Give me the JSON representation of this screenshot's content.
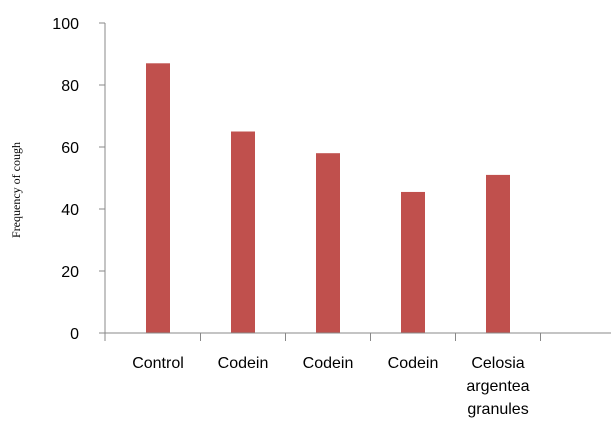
{
  "chart_data": {
    "type": "bar",
    "title": "",
    "xlabel": "",
    "ylabel": "Frequency of cough",
    "ylim": [
      0,
      100
    ],
    "yticks": [
      0,
      20,
      40,
      60,
      80,
      100
    ],
    "grid": false,
    "legend": "none",
    "bar_color": "#c0504d",
    "axis_color": "#888888",
    "categories": [
      [
        "Control"
      ],
      [
        "Codein"
      ],
      [
        "Codein"
      ],
      [
        "Codein"
      ],
      [
        "Celosia",
        "argentea",
        "granules"
      ]
    ],
    "values": [
      87,
      65,
      58,
      45.5,
      51
    ]
  }
}
